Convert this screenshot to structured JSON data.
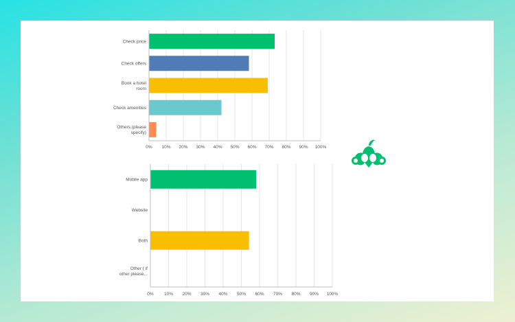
{
  "colors": {
    "green": "#00bf6f",
    "blue": "#507cb6",
    "yellow": "#f9be00",
    "teal": "#6bc8cd",
    "orange": "#ff8b4f",
    "grid": "#e4e4e4",
    "axis": "#bdbdbd",
    "logo": "#00bf6f"
  },
  "logo": {
    "icon": "surveymonkey-logo-icon"
  },
  "chart_data": [
    {
      "type": "bar",
      "orientation": "horizontal",
      "categories": [
        [
          "Check price"
        ],
        [
          "Check offers"
        ],
        [
          "Book a hotel",
          "room"
        ],
        [
          "Check amenities"
        ],
        [
          "Others (please",
          "specify)"
        ]
      ],
      "values": [
        73,
        58,
        69,
        42,
        4
      ],
      "bar_colors": [
        "#00bf6f",
        "#507cb6",
        "#f9be00",
        "#6bc8cd",
        "#ff8b4f"
      ],
      "xlim": [
        0,
        100
      ],
      "ticks": [
        "0%",
        "10%",
        "20%",
        "30%",
        "40%",
        "50%",
        "60%",
        "70%",
        "80%",
        "90%",
        "100%"
      ],
      "grid": true
    },
    {
      "type": "bar",
      "orientation": "horizontal",
      "categories": [
        [
          "Mobile app"
        ],
        [
          "Website"
        ],
        [
          "Both"
        ],
        [
          "Other ( if",
          "other please..."
        ]
      ],
      "values": [
        58,
        0,
        54,
        0
      ],
      "bar_colors": [
        "#00bf6f",
        "#507cb6",
        "#f9be00",
        "#6bc8cd"
      ],
      "xlim": [
        0,
        100
      ],
      "ticks": [
        "0%",
        "10%",
        "20%",
        "30%",
        "40%",
        "50%",
        "60%",
        "70%",
        "80%",
        "90%",
        "100%"
      ],
      "grid": true
    }
  ]
}
